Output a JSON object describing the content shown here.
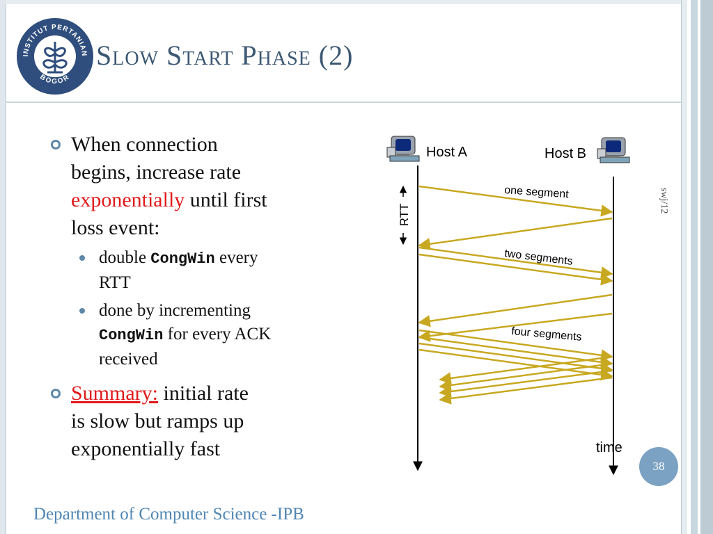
{
  "slide": {
    "title": "Slow Start Phase (2)",
    "footer": "Department of Computer Science -IPB",
    "side_note": "swj/12",
    "page_number": "38"
  },
  "logo": {
    "ring_text_top": "INSTITUT PERTANIAN",
    "ring_text_bottom": "BOGOR",
    "color": "#2f4e7d"
  },
  "bullets": {
    "b1": {
      "line1": "When connection",
      "line2": "begins, increase rate",
      "emph": "exponentially",
      "after_emph": " until first",
      "line4": "loss event:"
    },
    "sub1": {
      "pre": "double ",
      "code": "CongWin",
      "post": " every",
      "line2": "RTT"
    },
    "sub2": {
      "line1": "done by incrementing",
      "code": "CongWin",
      "post": " for every ACK",
      "line3": "received"
    },
    "b2": {
      "emph": "Summary:",
      "after_emph": " initial rate",
      "line2": "is slow but ramps up",
      "line3": "exponentially fast"
    }
  },
  "diagram": {
    "host_a": "Host A",
    "host_b": "Host B",
    "rtt_label": "RTT",
    "time_label": "time",
    "round1_label": "one segment",
    "round2_label": "two segments",
    "round3_label": "four segments",
    "arrow_color": "#c8a820"
  },
  "colors": {
    "title": "#3c5873",
    "emphasis": "#e0191a",
    "footer": "#4f86b3",
    "bullet": "#5f87a8"
  }
}
